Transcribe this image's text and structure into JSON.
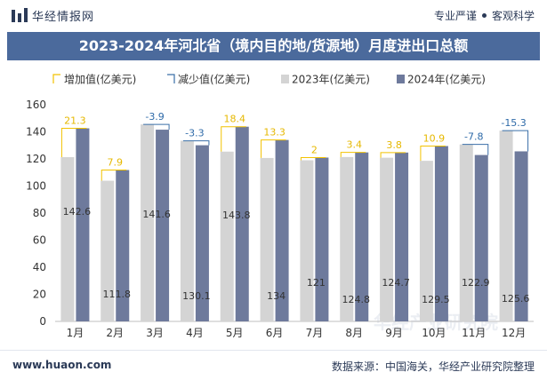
{
  "header": {
    "brand": "华经情报网",
    "tag_left": "专业严谨",
    "tag_right": "客观科学",
    "logo_icon": "bar-logo-icon"
  },
  "footer": {
    "site": "www.huaon.com",
    "source": "数据来源：中国海关，华经产业研究院整理"
  },
  "watermark": "华经产业研究院",
  "colors": {
    "title_band": "#4b6a9c",
    "bar_2023": "#d4d4d4",
    "bar_2024": "#6e7a9c",
    "increase": "#f2c200",
    "decrease": "#3a6fa8",
    "label_increase": "#e6b800",
    "label_decrease": "#2e6aa8"
  },
  "chart_data": {
    "type": "bar",
    "title": "2023-2024年河北省（境内目的地/货源地）月度进出口总额",
    "xlabel": "",
    "ylabel": "",
    "ylim": [
      0,
      160
    ],
    "yticks": [
      0,
      20,
      40,
      60,
      80,
      100,
      120,
      140,
      160
    ],
    "categories": [
      "1月",
      "2月",
      "3月",
      "4月",
      "5月",
      "6月",
      "7月",
      "8月",
      "9月",
      "10月",
      "11月",
      "12月"
    ],
    "legend_position": "top",
    "legend": [
      "增加值(亿美元)",
      "减少值(亿美元)",
      "2023年(亿美元)",
      "2024年(亿美元)"
    ],
    "series": [
      {
        "name": "2023年(亿美元)",
        "values": [
          121.3,
          103.9,
          145.5,
          133.4,
          125.4,
          120.7,
          119.0,
          121.4,
          120.9,
          118.6,
          130.7,
          140.9
        ]
      },
      {
        "name": "2024年(亿美元)",
        "values": [
          142.6,
          111.8,
          141.6,
          130.1,
          143.8,
          134,
          121,
          124.8,
          124.7,
          129.5,
          122.9,
          125.6
        ]
      }
    ],
    "change_values": [
      21.3,
      7.9,
      -3.9,
      -3.3,
      18.4,
      13.3,
      2,
      3.4,
      3.8,
      10.9,
      -7.8,
      -15.3
    ],
    "change_labels": [
      "21.3",
      "7.9",
      "-3.9",
      "-3.3",
      "18.4",
      "13.3",
      "2",
      "3.4",
      "3.8",
      "10.9",
      "-7.8",
      "-15.3"
    ],
    "value_labels_2024": [
      "142.6",
      "111.8",
      "141.6",
      "130.1",
      "143.8",
      "134",
      "121",
      "124.8",
      "124.7",
      "129.5",
      "122.9",
      "125.6"
    ],
    "grid": false
  }
}
